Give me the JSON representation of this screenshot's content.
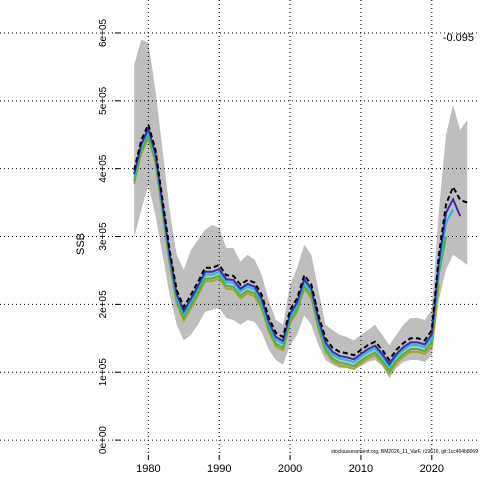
{
  "chart_data": {
    "type": "line",
    "y_label": "SSB",
    "annotation": "-0.095",
    "footer": "stockassessment.org, BM2026_11_VarF, r19616, git:1cc464b8069",
    "x": [
      1978,
      1979,
      1980,
      1981,
      1982,
      1983,
      1984,
      1985,
      1986,
      1987,
      1988,
      1989,
      1990,
      1991,
      1992,
      1993,
      1994,
      1995,
      1996,
      1997,
      1998,
      1999,
      2000,
      2001,
      2002,
      2003,
      2004,
      2005,
      2006,
      2007,
      2008,
      2009,
      2010,
      2011,
      2012,
      2013,
      2014,
      2015,
      2016,
      2017,
      2018,
      2019,
      2020,
      2021,
      2022,
      2023,
      2024,
      2025
    ],
    "band": {
      "color": "#bebebe",
      "upper": [
        553000.0,
        590000.0,
        586000.0,
        516000.0,
        428000.0,
        339000.0,
        273000.0,
        251000.0,
        280000.0,
        295000.0,
        310000.0,
        317000.0,
        313000.0,
        283000.0,
        283000.0,
        263000.0,
        273000.0,
        266000.0,
        243000.0,
        206000.0,
        177000.0,
        170000.0,
        229000.0,
        254000.0,
        288000.0,
        273000.0,
        221000.0,
        170000.0,
        162000.0,
        155000.0,
        152000.0,
        147000.0,
        155000.0,
        162000.0,
        170000.0,
        155000.0,
        140000.0,
        155000.0,
        170000.0,
        180000.0,
        180000.0,
        177000.0,
        192000.0,
        339000.0,
        450000.0,
        494000.0,
        457000.0,
        472000.0
      ],
      "lower": [
        299000.0,
        339000.0,
        376000.0,
        332000.0,
        273000.0,
        214000.0,
        170000.0,
        147000.0,
        155000.0,
        170000.0,
        189000.0,
        192000.0,
        195000.0,
        180000.0,
        177000.0,
        170000.0,
        177000.0,
        174000.0,
        159000.0,
        133000.0,
        118000.0,
        111000.0,
        140000.0,
        155000.0,
        184000.0,
        170000.0,
        140000.0,
        118000.0,
        111000.0,
        106000.0,
        106000.0,
        103000.0,
        109000.0,
        115000.0,
        118000.0,
        109000.0,
        91000.0,
        106000.0,
        115000.0,
        118000.0,
        118000.0,
        115000.0,
        125000.0,
        206000.0,
        251000.0,
        273000.0,
        266000.0,
        258000.0
      ]
    },
    "series": [
      {
        "color": "#a8a820",
        "values": [
          378000.0,
          422000.0,
          445000.0,
          408000.0,
          334000.0,
          260000.0,
          201000.0,
          176000.0,
          194000.0,
          213000.0,
          234000.0,
          234000.0,
          238000.0,
          223000.0,
          222000.0,
          209000.0,
          216000.0,
          212000.0,
          194000.0,
          160000.0,
          138000.0,
          132000.0,
          172000.0,
          189000.0,
          223000.0,
          209000.0,
          164000.0,
          130000.0,
          116000.0,
          110000.0,
          108000.0,
          105000.0,
          113000.0,
          120000.0,
          125000.0,
          113000.0,
          98000.0,
          113000.0,
          123000.0,
          130000.0,
          130000.0,
          127000.0,
          138000.0,
          230000.0,
          null,
          null,
          null,
          null
        ]
      },
      {
        "color": "#4caf50",
        "values": [
          382000.0,
          426000.0,
          449000.0,
          412000.0,
          338000.0,
          264000.0,
          205000.0,
          180000.0,
          198000.0,
          217000.0,
          238000.0,
          238000.0,
          242000.0,
          227000.0,
          226000.0,
          213000.0,
          220000.0,
          216000.0,
          198000.0,
          164000.0,
          142000.0,
          136000.0,
          176000.0,
          193000.0,
          227000.0,
          213000.0,
          168000.0,
          134000.0,
          120000.0,
          114000.0,
          112000.0,
          109000.0,
          117000.0,
          124000.0,
          129000.0,
          117000.0,
          102000.0,
          117000.0,
          127000.0,
          134000.0,
          134000.0,
          131000.0,
          144000.0,
          245000.0,
          300000.0,
          null,
          null,
          null
        ]
      },
      {
        "color": "#29b6e8",
        "values": [
          388000.0,
          432000.0,
          455000.0,
          418000.0,
          344000.0,
          270000.0,
          211000.0,
          186000.0,
          204000.0,
          223000.0,
          244000.0,
          244000.0,
          248000.0,
          233000.0,
          232000.0,
          219000.0,
          226000.0,
          222000.0,
          204000.0,
          170000.0,
          148000.0,
          142000.0,
          182000.0,
          199000.0,
          233000.0,
          219000.0,
          174000.0,
          140000.0,
          126000.0,
          120000.0,
          118000.0,
          115000.0,
          123000.0,
          130000.0,
          135000.0,
          123000.0,
          108000.0,
          123000.0,
          133000.0,
          140000.0,
          140000.0,
          137000.0,
          150000.0,
          255000.0,
          320000.0,
          340000.0,
          null,
          null
        ]
      },
      {
        "color": "#3b2fa3",
        "values": [
          392000.0,
          436000.0,
          459000.0,
          422000.0,
          348000.0,
          274000.0,
          215000.0,
          190000.0,
          208000.0,
          227000.0,
          248000.0,
          248000.0,
          252000.0,
          237000.0,
          236000.0,
          223000.0,
          230000.0,
          226000.0,
          208000.0,
          174000.0,
          152000.0,
          146000.0,
          186000.0,
          203000.0,
          237000.0,
          223000.0,
          178000.0,
          144000.0,
          130000.0,
          124000.0,
          122000.0,
          119000.0,
          127000.0,
          134000.0,
          139000.0,
          127000.0,
          112000.0,
          127000.0,
          137000.0,
          144000.0,
          144000.0,
          141000.0,
          156000.0,
          262000.0,
          335000.0,
          355000.0,
          330000.0,
          null
        ]
      },
      {
        "color": "#000000",
        "dashed": true,
        "values": [
          398000.0,
          442000.0,
          465000.0,
          428000.0,
          354000.0,
          280000.0,
          221000.0,
          196000.0,
          214000.0,
          233000.0,
          254000.0,
          254000.0,
          258000.0,
          243000.0,
          242000.0,
          229000.0,
          236000.0,
          232000.0,
          214000.0,
          180000.0,
          158000.0,
          152000.0,
          192000.0,
          209000.0,
          243000.0,
          229000.0,
          184000.0,
          150000.0,
          136000.0,
          130000.0,
          128000.0,
          125000.0,
          133000.0,
          140000.0,
          145000.0,
          133000.0,
          118000.0,
          133000.0,
          143000.0,
          150000.0,
          150000.0,
          147000.0,
          162000.0,
          273000.0,
          347000.0,
          373000.0,
          354000.0,
          350000.0
        ]
      }
    ],
    "xlim": [
      1976,
      2026.8
    ],
    "ylim": [
      -22000,
      625000
    ],
    "xticks": [
      1980,
      1990,
      2000,
      2010,
      2020
    ],
    "yticks": [
      {
        "value": 0,
        "label": "0e+00"
      },
      {
        "value": 100000,
        "label": "1e+05"
      },
      {
        "value": 200000,
        "label": "2e+05"
      },
      {
        "value": 300000,
        "label": "3e+05"
      },
      {
        "value": 400000,
        "label": "4e+05"
      },
      {
        "value": 500000,
        "label": "5e+05"
      },
      {
        "value": 600000,
        "label": "6e+05"
      }
    ],
    "grid": true
  }
}
